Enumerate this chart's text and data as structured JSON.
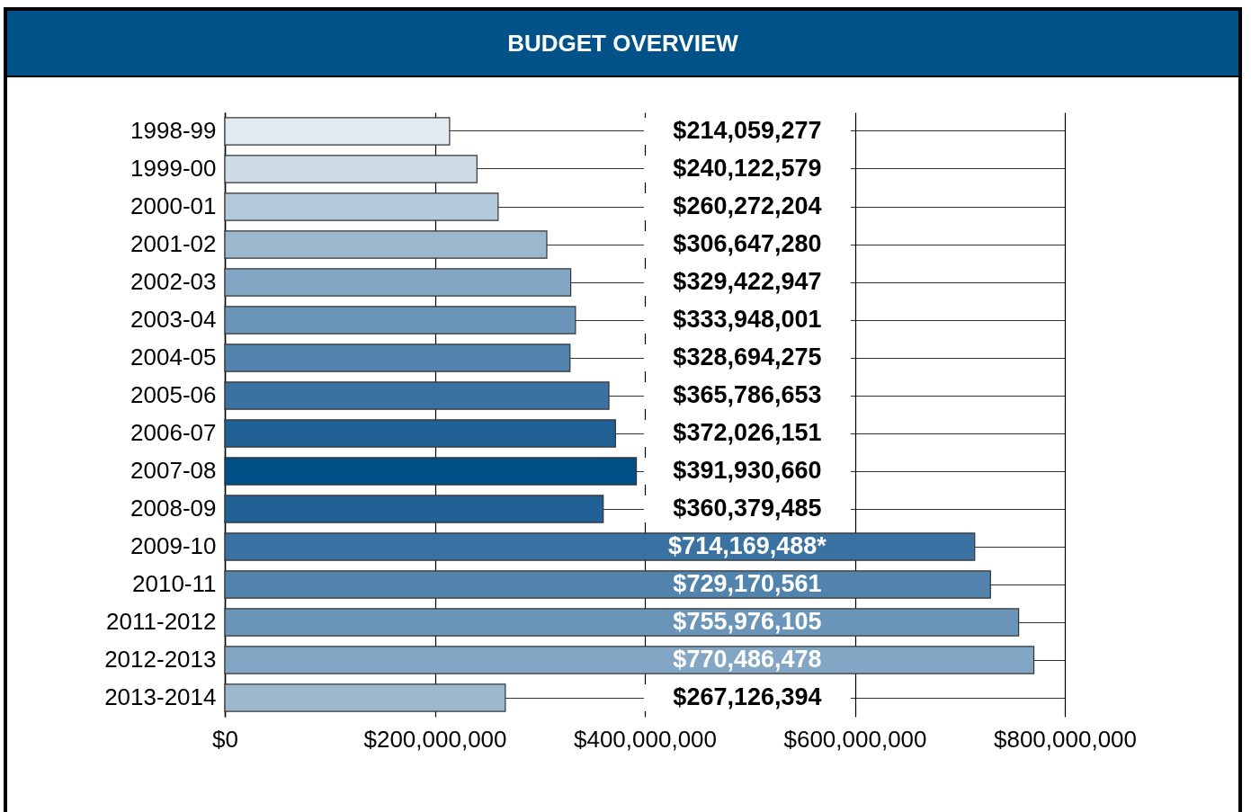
{
  "chart_data": {
    "type": "bar",
    "orientation": "horizontal",
    "title": "BUDGET OVERVIEW",
    "categories": [
      "1998-99",
      "1999-00",
      "2000-01",
      "2001-02",
      "2002-03",
      "2003-04",
      "2004-05",
      "2005-06",
      "2006-07",
      "2007-08",
      "2008-09",
      "2009-10",
      "2010-11",
      "2011-2012",
      "2012-2013",
      "2013-2014"
    ],
    "values": [
      214059277,
      240122579,
      260272204,
      306647280,
      329422947,
      333948001,
      328694275,
      365786653,
      372026151,
      391930660,
      360379485,
      714169488,
      729170561,
      755976105,
      770486478,
      267126394
    ],
    "value_labels": [
      "$214,059,277",
      "$240,122,579",
      "$260,272,204",
      "$306,647,280",
      "$329,422,947",
      "$333,948,001",
      "$328,694,275",
      "$365,786,653",
      "$372,026,151",
      "$391,930,660",
      "$360,379,485",
      "$714,169,488*",
      "$729,170,561",
      "$755,976,105",
      "$770,486,478",
      "$267,126,394"
    ],
    "colors": [
      "#e3ebf2",
      "#ccdbe6",
      "#b4cadb",
      "#9bb8cf",
      "#82a6c3",
      "#6a95b8",
      "#5183ad",
      "#3a72a1",
      "#216196",
      "#004f87",
      "#216196",
      "#3a72a1",
      "#5183ad",
      "#6a95b8",
      "#82a6c3",
      "#9bb8cf"
    ],
    "xlim": [
      0,
      800000000
    ],
    "xticks": [
      {
        "value": 0,
        "label": "$0"
      },
      {
        "value": 200000000,
        "label": "$200,000,000"
      },
      {
        "value": 400000000,
        "label": "$400,000,000"
      },
      {
        "value": 600000000,
        "label": "$600,000,000"
      },
      {
        "value": 800000000,
        "label": "$800,000,000"
      }
    ],
    "grid": true
  }
}
